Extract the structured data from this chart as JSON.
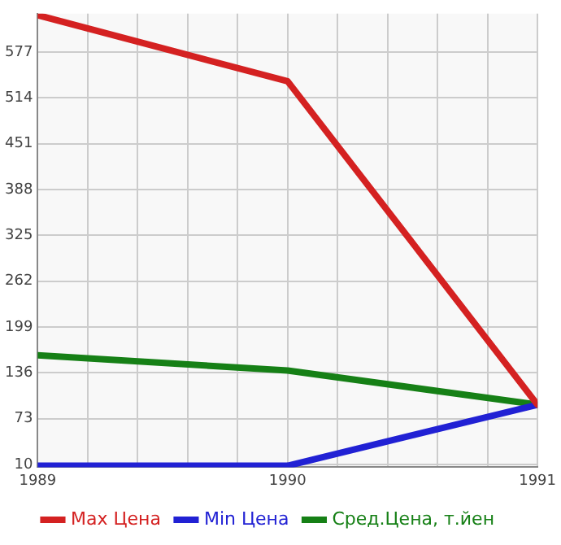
{
  "chart_data": {
    "type": "line",
    "x": [
      1989,
      1990,
      1991
    ],
    "series": [
      {
        "name": "Max Цена",
        "color": "#d42121",
        "values": [
          628,
          537,
          92
        ]
      },
      {
        "name": "Min Цена",
        "color": "#2121d4",
        "values": [
          8,
          8,
          92
        ]
      },
      {
        "name": "Сред.Цена, т.йен",
        "color": "#168016",
        "values": [
          160,
          139,
          92
        ]
      }
    ],
    "xlim": [
      1989,
      1991
    ],
    "xticks": [
      1989,
      {
        "value": 1989.2,
        "label": null
      },
      {
        "value": 1989.4,
        "label": null
      },
      {
        "value": 1989.6,
        "label": null
      },
      {
        "value": 1989.8,
        "label": null
      },
      1990,
      {
        "value": 1990.2,
        "label": null
      },
      {
        "value": 1990.4,
        "label": null
      },
      {
        "value": 1990.6,
        "label": null
      },
      {
        "value": 1990.8,
        "label": null
      },
      1991
    ],
    "ylim": [
      6,
      630
    ],
    "yticks": [
      10,
      73,
      136,
      199,
      262,
      325,
      388,
      451,
      514,
      577
    ],
    "grid": true,
    "legend": "bottom",
    "marker": "none",
    "line_style": "solid"
  }
}
